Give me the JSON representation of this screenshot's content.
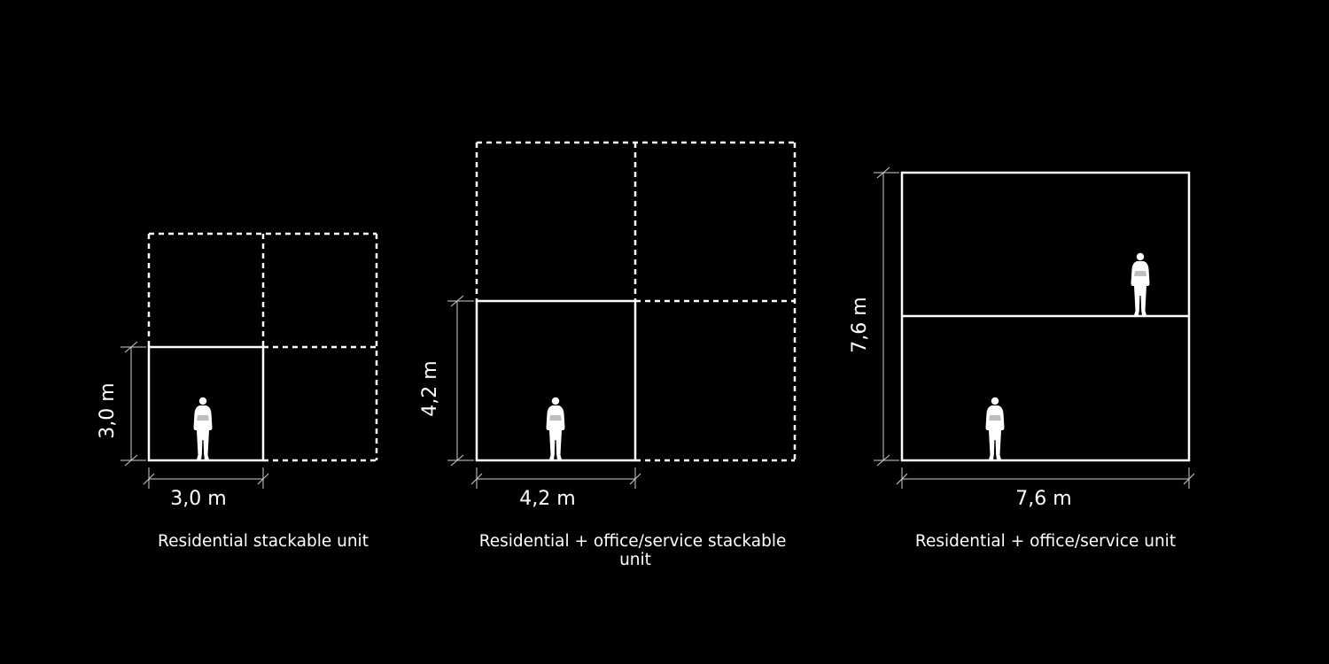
{
  "units": [
    {
      "id": "residential-stackable",
      "height_label": "3,0 m",
      "width_label": "3,0 m",
      "caption_lines": [
        "Residential stackable unit"
      ]
    },
    {
      "id": "residential-office-stackable",
      "height_label": "4,2 m",
      "width_label": "4,2 m",
      "caption_lines": [
        "Residential + office/service stackable",
        "unit"
      ]
    },
    {
      "id": "residential-office",
      "height_label": "7,6 m",
      "width_label": "7,6 m",
      "caption_lines": [
        "Residential + office/service unit"
      ]
    }
  ],
  "colors": {
    "background": "#000000",
    "lines": "#ffffff"
  }
}
